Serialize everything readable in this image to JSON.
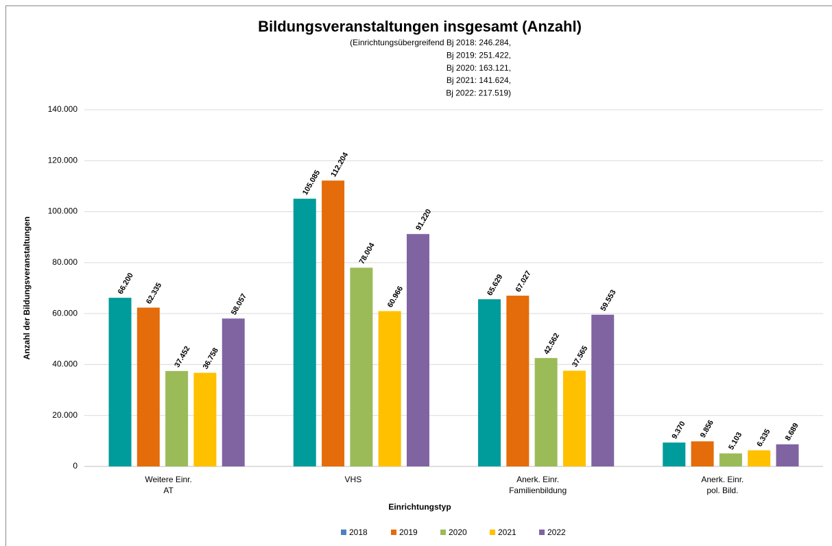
{
  "chart_data": {
    "type": "bar",
    "title": "Bildungsveranstaltungen insgesamt (Anzahl)",
    "subtitle": [
      "(Einrichtungsübergreifend Bj 2018: 246.284,",
      "Bj 2019: 251.422,",
      "Bj 2020: 163.121,",
      "Bj 2021: 141.624,",
      "Bj 2022: 217.519)"
    ],
    "x_label": "Einrichtungstyp",
    "y_label": "Anzahl der Bildungsveranstaltungen",
    "categories": [
      [
        "Weitere Einr.",
        "AT"
      ],
      [
        "VHS"
      ],
      [
        "Anerk. Einr.",
        "Familienbildung"
      ],
      [
        "Anerk. Einr.",
        "pol. Bild."
      ]
    ],
    "series": [
      {
        "name": "2018",
        "color": "#009b9b",
        "legend_color": "#4f81bd",
        "values": [
          66200,
          105085,
          65629,
          9370
        ],
        "value_labels": [
          "66.200",
          "105.085",
          "65.629",
          "9.370"
        ]
      },
      {
        "name": "2019",
        "color": "#e46c0a",
        "values": [
          62335,
          112204,
          67027,
          9856
        ],
        "value_labels": [
          "62.335",
          "112.204",
          "67.027",
          "9.856"
        ]
      },
      {
        "name": "2020",
        "color": "#9bbb59",
        "values": [
          37452,
          78004,
          42562,
          5103
        ],
        "value_labels": [
          "37.452",
          "78.004",
          "42.562",
          "5.103"
        ]
      },
      {
        "name": "2021",
        "color": "#ffc000",
        "values": [
          36758,
          60966,
          37565,
          6335
        ],
        "value_labels": [
          "36.758",
          "60.966",
          "37.565",
          "6.335"
        ]
      },
      {
        "name": "2022",
        "color": "#8064a2",
        "values": [
          58057,
          91220,
          59553,
          8689
        ],
        "value_labels": [
          "58.057",
          "91.220",
          "59.553",
          "8.689"
        ]
      }
    ],
    "ylim": [
      0,
      140000
    ],
    "yticks": [
      {
        "value": 0,
        "label": "0"
      },
      {
        "value": 20000,
        "label": "20.000"
      },
      {
        "value": 40000,
        "label": "40.000"
      },
      {
        "value": 60000,
        "label": "60.000"
      },
      {
        "value": 80000,
        "label": "80.000"
      },
      {
        "value": 100000,
        "label": "100.000"
      },
      {
        "value": 120000,
        "label": "120.000"
      },
      {
        "value": 140000,
        "label": "140.000"
      }
    ],
    "grid": true,
    "legend": "bottom"
  }
}
